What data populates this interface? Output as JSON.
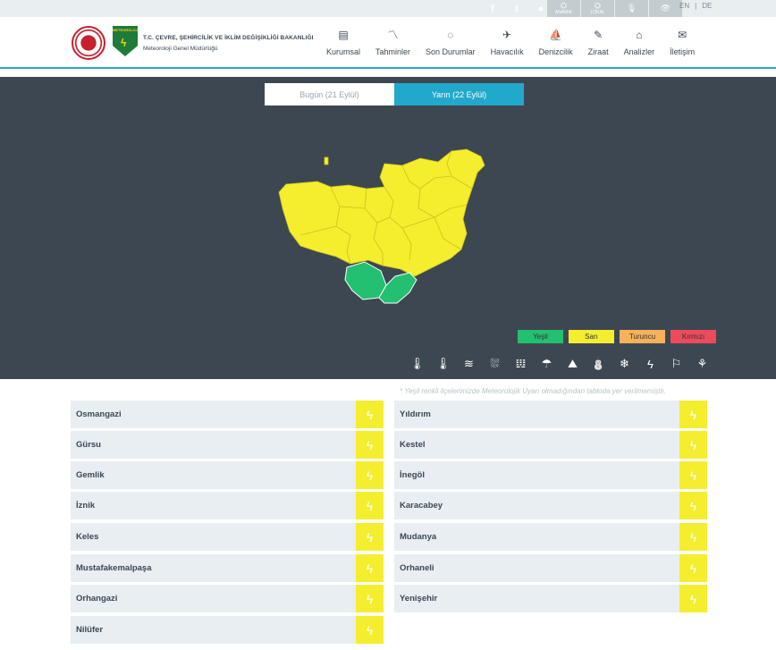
{
  "topbar": {
    "social_icons": [
      "facebook-icon",
      "twitter-icon",
      "user-icon"
    ],
    "tiles": [
      {
        "icon": "⛭",
        "label": "ANAMIK"
      },
      {
        "icon": "⛭",
        "label": "LOKAL"
      },
      {
        "icon": "🎙",
        "label": ""
      },
      {
        "icon": "👁",
        "label": ""
      }
    ],
    "lang_en": "EN",
    "lang_sep": "|",
    "lang_de": "DE"
  },
  "header": {
    "org_line1": "T.C. ÇEVRE, ŞEHİRCİLİK VE İKLİM DEĞİŞİKLİĞİ BAKANLIĞI",
    "org_line2": "Meteoroloji Genel Müdürlüğü",
    "logo_text": "METEOROLOJI",
    "nav": [
      {
        "label": "Kurumsal",
        "icon": "▤"
      },
      {
        "label": "Tahminler",
        "icon": "〽"
      },
      {
        "label": "Son Durumlar",
        "icon": "◌"
      },
      {
        "label": "Havacılık",
        "icon": "✈"
      },
      {
        "label": "Denizcilik",
        "icon": "⛵"
      },
      {
        "label": "Ziraat",
        "icon": "✎"
      },
      {
        "label": "Analizler",
        "icon": "⌂"
      },
      {
        "label": "İletişim",
        "icon": "✉"
      }
    ]
  },
  "tabs": {
    "today": "Bugün (21 Eylül)",
    "tomorrow": "Yarın (22 Eylül)"
  },
  "legend": [
    {
      "label": "Yeşil",
      "color": "#22c070"
    },
    {
      "label": "Sarı",
      "color": "#f4ee2f"
    },
    {
      "label": "Turuncu",
      "color": "#f5b25a"
    },
    {
      "label": "Kırmızı",
      "color": "#ec4b5c"
    }
  ],
  "hazard_icons": [
    {
      "name": "cold-icon",
      "glyph": "🌡"
    },
    {
      "name": "hot-icon",
      "glyph": "🌡"
    },
    {
      "name": "fog-icon",
      "glyph": "≋"
    },
    {
      "name": "storm-icon",
      "glyph": "⛆"
    },
    {
      "name": "wind-icon",
      "glyph": "𝍕"
    },
    {
      "name": "rain-icon",
      "glyph": "☂"
    },
    {
      "name": "avalanche-icon",
      "glyph": "⛰"
    },
    {
      "name": "snow-ice-icon",
      "glyph": "⛄"
    },
    {
      "name": "snow-icon",
      "glyph": "❄"
    },
    {
      "name": "lightning-icon",
      "glyph": "ϟ"
    },
    {
      "name": "windsock-icon",
      "glyph": "⚐"
    },
    {
      "name": "dust-icon",
      "glyph": "⚘"
    }
  ],
  "note": "* Yeşil renkli ilçelerimizde Meteorolojik Uyarı olmadığından tabloda yer verilmemiştir.",
  "districts_left": [
    "Osmangazi",
    "Gürsu",
    "Gemlik",
    "İznik",
    "Keles",
    "Mustafakemalpaşa",
    "Orhangazi",
    "Nilüfer"
  ],
  "districts_right": [
    "Yıldırım",
    "Kestel",
    "İnegöl",
    "Karacabey",
    "Mudanya",
    "Orhaneli",
    "Yenişehir"
  ],
  "warning_glyph": "ϟ",
  "colors": {
    "yellow": "#f4ee2f",
    "green": "#22c070",
    "panel": "#3d4752",
    "accent": "#21a9cc"
  }
}
